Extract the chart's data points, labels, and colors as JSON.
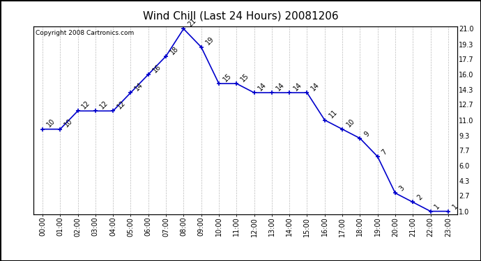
{
  "title": "Wind Chill (Last 24 Hours) 20081206",
  "copyright": "Copyright 2008 Cartronics.com",
  "hours": [
    "00:00",
    "01:00",
    "02:00",
    "03:00",
    "04:00",
    "05:00",
    "06:00",
    "07:00",
    "08:00",
    "09:00",
    "10:00",
    "11:00",
    "12:00",
    "13:00",
    "14:00",
    "15:00",
    "16:00",
    "17:00",
    "18:00",
    "19:00",
    "20:00",
    "21:00",
    "22:00",
    "23:00"
  ],
  "values": [
    10,
    10,
    12,
    12,
    12,
    14,
    16,
    18,
    21,
    19,
    15,
    15,
    14,
    14,
    14,
    14,
    11,
    10,
    9,
    7,
    3,
    2,
    1,
    1
  ],
  "yticks_right": [
    1.0,
    2.7,
    4.3,
    6.0,
    7.7,
    9.3,
    11.0,
    12.7,
    14.3,
    16.0,
    17.7,
    19.3,
    21.0
  ],
  "line_color": "#0000cc",
  "marker": "+",
  "marker_size": 5,
  "marker_linewidth": 1.2,
  "line_width": 1.2,
  "grid_color": "#bbbbbb",
  "bg_color": "#ffffff",
  "outer_bg": "#ffffff",
  "title_fontsize": 11,
  "label_fontsize": 7,
  "annot_fontsize": 7,
  "copyright_fontsize": 6.5,
  "ymin": 0.7,
  "ymax": 21.3
}
